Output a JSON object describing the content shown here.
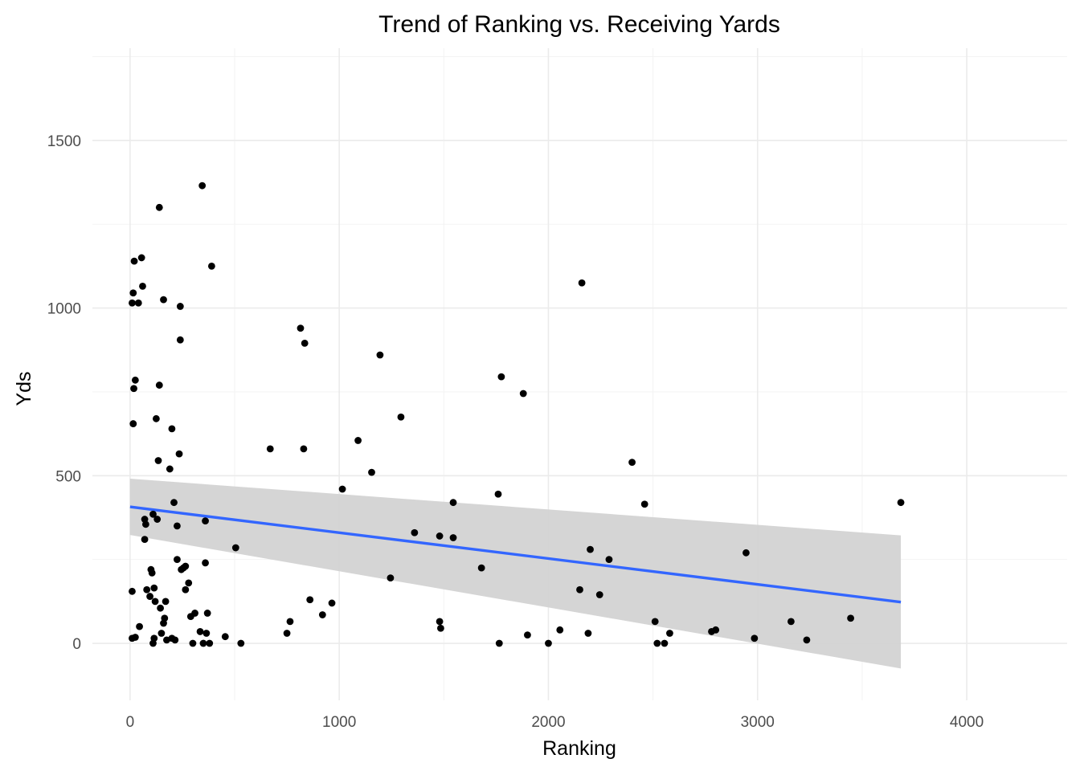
{
  "chart_data": {
    "type": "scatter",
    "title": "Trend of Ranking vs. Receiving Yards",
    "xlabel": "Ranking",
    "ylabel": "Yds",
    "xlim": [
      -180,
      4480
    ],
    "ylim": [
      -170,
      1775
    ],
    "x_ticks": [
      0,
      1000,
      2000,
      3000,
      4000
    ],
    "x_tick_labels": [
      "0",
      "1000",
      "2000",
      "3000",
      "4000"
    ],
    "y_ticks": [
      0,
      500,
      1000,
      1500
    ],
    "y_tick_labels": [
      "0",
      "500",
      "1000",
      "1500"
    ],
    "grid": true,
    "legend": "none",
    "point_color": "#000000",
    "trend_color": "#3366ff",
    "band_color": "#d3d3d3",
    "points": [
      [
        10,
        1015
      ],
      [
        15,
        1045
      ],
      [
        20,
        1140
      ],
      [
        25,
        785
      ],
      [
        18,
        760
      ],
      [
        15,
        655
      ],
      [
        10,
        155
      ],
      [
        10,
        15
      ],
      [
        25,
        18
      ],
      [
        40,
        1015
      ],
      [
        55,
        1150
      ],
      [
        60,
        1065
      ],
      [
        45,
        50
      ],
      [
        70,
        370
      ],
      [
        75,
        355
      ],
      [
        70,
        310
      ],
      [
        80,
        160
      ],
      [
        95,
        140
      ],
      [
        100,
        220
      ],
      [
        105,
        210
      ],
      [
        110,
        385
      ],
      [
        115,
        165
      ],
      [
        120,
        125
      ],
      [
        115,
        15
      ],
      [
        110,
        0
      ],
      [
        125,
        670
      ],
      [
        130,
        370
      ],
      [
        135,
        545
      ],
      [
        140,
        1300
      ],
      [
        140,
        770
      ],
      [
        145,
        105
      ],
      [
        150,
        30
      ],
      [
        160,
        1025
      ],
      [
        160,
        60
      ],
      [
        165,
        75
      ],
      [
        170,
        125
      ],
      [
        175,
        10
      ],
      [
        190,
        520
      ],
      [
        200,
        640
      ],
      [
        200,
        15
      ],
      [
        210,
        420
      ],
      [
        215,
        10
      ],
      [
        225,
        350
      ],
      [
        225,
        250
      ],
      [
        235,
        565
      ],
      [
        240,
        1005
      ],
      [
        240,
        905
      ],
      [
        245,
        220
      ],
      [
        255,
        225
      ],
      [
        265,
        230
      ],
      [
        265,
        160
      ],
      [
        280,
        180
      ],
      [
        290,
        80
      ],
      [
        300,
        0
      ],
      [
        310,
        90
      ],
      [
        335,
        35
      ],
      [
        345,
        1365
      ],
      [
        350,
        0
      ],
      [
        360,
        365
      ],
      [
        360,
        240
      ],
      [
        365,
        30
      ],
      [
        370,
        90
      ],
      [
        380,
        0
      ],
      [
        390,
        1125
      ],
      [
        455,
        20
      ],
      [
        505,
        285
      ],
      [
        530,
        0
      ],
      [
        670,
        580
      ],
      [
        750,
        30
      ],
      [
        765,
        65
      ],
      [
        815,
        940
      ],
      [
        830,
        580
      ],
      [
        835,
        895
      ],
      [
        860,
        130
      ],
      [
        920,
        85
      ],
      [
        965,
        120
      ],
      [
        1015,
        460
      ],
      [
        1090,
        605
      ],
      [
        1155,
        510
      ],
      [
        1195,
        860
      ],
      [
        1245,
        195
      ],
      [
        1295,
        675
      ],
      [
        1360,
        330
      ],
      [
        1480,
        65
      ],
      [
        1480,
        320
      ],
      [
        1485,
        45
      ],
      [
        1545,
        420
      ],
      [
        1545,
        315
      ],
      [
        1680,
        225
      ],
      [
        1760,
        445
      ],
      [
        1765,
        0
      ],
      [
        1775,
        795
      ],
      [
        1880,
        745
      ],
      [
        1900,
        25
      ],
      [
        2000,
        0
      ],
      [
        2055,
        40
      ],
      [
        2150,
        160
      ],
      [
        2160,
        1075
      ],
      [
        2190,
        30
      ],
      [
        2200,
        280
      ],
      [
        2245,
        145
      ],
      [
        2290,
        250
      ],
      [
        2400,
        540
      ],
      [
        2460,
        415
      ],
      [
        2510,
        65
      ],
      [
        2520,
        0
      ],
      [
        2555,
        0
      ],
      [
        2580,
        30
      ],
      [
        2780,
        35
      ],
      [
        2800,
        40
      ],
      [
        2945,
        270
      ],
      [
        2985,
        15
      ],
      [
        3160,
        65
      ],
      [
        3235,
        10
      ],
      [
        3445,
        75
      ],
      [
        3685,
        420
      ]
    ],
    "trend": {
      "method": "linear",
      "x": [
        0,
        3685
      ],
      "y": [
        407,
        123
      ],
      "ci_lower": [
        323,
        -75
      ],
      "ci_upper": [
        491,
        322
      ]
    }
  }
}
